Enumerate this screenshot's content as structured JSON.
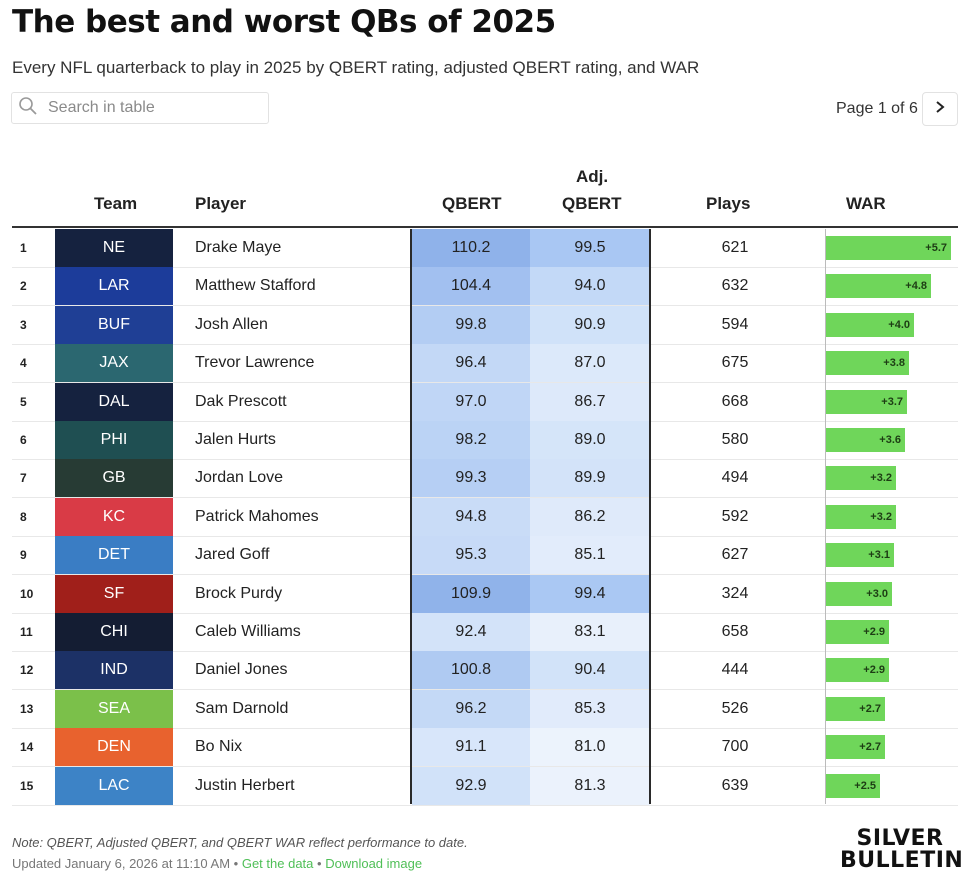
{
  "title": "The best and worst QBs of 2025",
  "subtitle": "Every NFL quarterback to play in 2025 by QBERT rating, adjusted QBERT rating, and WAR",
  "search": {
    "placeholder": "Search in table",
    "icon": "search-icon"
  },
  "pager": {
    "label": "Page 1 of 6",
    "next_icon": "chevron-right-icon"
  },
  "columns": {
    "team": "Team",
    "player": "Player",
    "qbert": "QBERT",
    "adj_line1": "Adj.",
    "adj_line2": "QBERT",
    "plays": "Plays",
    "war": "WAR"
  },
  "rows": [
    {
      "rank": "1",
      "team": "NE",
      "team_color": "#15223f",
      "player": "Drake Maye",
      "qbert": "110.2",
      "qbert_color": "#8fb2ea",
      "adj": "99.5",
      "adj_color": "#a9c7f3",
      "plays": "621",
      "war_label": "+5.7",
      "war": 5.7
    },
    {
      "rank": "2",
      "team": "LAR",
      "team_color": "#1c3c9a",
      "player": "Matthew Stafford",
      "qbert": "104.4",
      "qbert_color": "#a2c0f0",
      "adj": "94.0",
      "adj_color": "#c3d9f7",
      "plays": "632",
      "war_label": "+4.8",
      "war": 4.8
    },
    {
      "rank": "3",
      "team": "BUF",
      "team_color": "#1f3f95",
      "player": "Josh Allen",
      "qbert": "99.8",
      "qbert_color": "#b3cdf3",
      "adj": "90.9",
      "adj_color": "#d0e2f9",
      "plays": "594",
      "war_label": "+4.0",
      "war": 4.0
    },
    {
      "rank": "4",
      "team": "JAX",
      "team_color": "#2b6770",
      "player": "Trevor Lawrence",
      "qbert": "96.4",
      "qbert_color": "#c3d8f6",
      "adj": "87.0",
      "adj_color": "#dce9fa",
      "plays": "675",
      "war_label": "+3.8",
      "war": 3.8
    },
    {
      "rank": "5",
      "team": "DAL",
      "team_color": "#15223f",
      "player": "Dak Prescott",
      "qbert": "97.0",
      "qbert_color": "#c0d6f6",
      "adj": "86.7",
      "adj_color": "#dde9fa",
      "plays": "668",
      "war_label": "+3.7",
      "war": 3.7
    },
    {
      "rank": "6",
      "team": "PHI",
      "team_color": "#1f4f52",
      "player": "Jalen Hurts",
      "qbert": "98.2",
      "qbert_color": "#bbd3f5",
      "adj": "89.0",
      "adj_color": "#d5e5f9",
      "plays": "580",
      "war_label": "+3.6",
      "war": 3.6
    },
    {
      "rank": "7",
      "team": "GB",
      "team_color": "#273b34",
      "player": "Jordan Love",
      "qbert": "99.3",
      "qbert_color": "#b6cff4",
      "adj": "89.9",
      "adj_color": "#d3e3f9",
      "plays": "494",
      "war_label": "+3.2",
      "war": 3.2
    },
    {
      "rank": "8",
      "team": "KC",
      "team_color": "#d93b46",
      "player": "Patrick Mahomes",
      "qbert": "94.8",
      "qbert_color": "#c9dcf7",
      "adj": "86.2",
      "adj_color": "#dfeafa",
      "plays": "592",
      "war_label": "+3.2",
      "war": 3.2
    },
    {
      "rank": "9",
      "team": "DET",
      "team_color": "#3a7dc4",
      "player": "Jared Goff",
      "qbert": "95.3",
      "qbert_color": "#c7daf7",
      "adj": "85.1",
      "adj_color": "#e2ecfb",
      "plays": "627",
      "war_label": "+3.1",
      "war": 3.1
    },
    {
      "rank": "10",
      "team": "SF",
      "team_color": "#a01f1a",
      "player": "Brock Purdy",
      "qbert": "109.9",
      "qbert_color": "#90b3ea",
      "adj": "99.4",
      "adj_color": "#aac8f3",
      "plays": "324",
      "war_label": "+3.0",
      "war": 3.0
    },
    {
      "rank": "11",
      "team": "CHI",
      "team_color": "#141d33",
      "player": "Caleb Williams",
      "qbert": "92.4",
      "qbert_color": "#d3e3f9",
      "adj": "83.1",
      "adj_color": "#e8f0fb",
      "plays": "658",
      "war_label": "+2.9",
      "war": 2.9
    },
    {
      "rank": "12",
      "team": "IND",
      "team_color": "#1c3166",
      "player": "Daniel Jones",
      "qbert": "100.8",
      "qbert_color": "#afcaf2",
      "adj": "90.4",
      "adj_color": "#d2e3f9",
      "plays": "444",
      "war_label": "+2.9",
      "war": 2.9
    },
    {
      "rank": "13",
      "team": "SEA",
      "team_color": "#7bc04a",
      "player": "Sam Darnold",
      "qbert": "96.2",
      "qbert_color": "#c4d9f6",
      "adj": "85.3",
      "adj_color": "#e1ebfb",
      "plays": "526",
      "war_label": "+2.7",
      "war": 2.7
    },
    {
      "rank": "14",
      "team": "DEN",
      "team_color": "#e8622e",
      "player": "Bo Nix",
      "qbert": "91.1",
      "qbert_color": "#d8e6fa",
      "adj": "81.0",
      "adj_color": "#ecf3fc",
      "plays": "700",
      "war_label": "+2.7",
      "war": 2.7
    },
    {
      "rank": "15",
      "team": "LAC",
      "team_color": "#3d83c6",
      "player": "Justin Herbert",
      "qbert": "92.9",
      "qbert_color": "#d1e2f9",
      "adj": "81.3",
      "adj_color": "#ebf2fc",
      "plays": "639",
      "war_label": "+2.5",
      "war": 2.5
    }
  ],
  "war_max": 6.0,
  "war_bar_color": "#6fd65a",
  "footer": {
    "note": "Note: QBERT, Adjusted QBERT, and QBERT WAR reflect performance to date.",
    "updated": "Updated January 6, 2026 at 11:10 AM",
    "sep": "•",
    "get_data": "Get the data",
    "download": "Download image",
    "link_color": "#4fbf57"
  },
  "brand": {
    "line1": "SILVER",
    "line2": "BULLETIN"
  }
}
